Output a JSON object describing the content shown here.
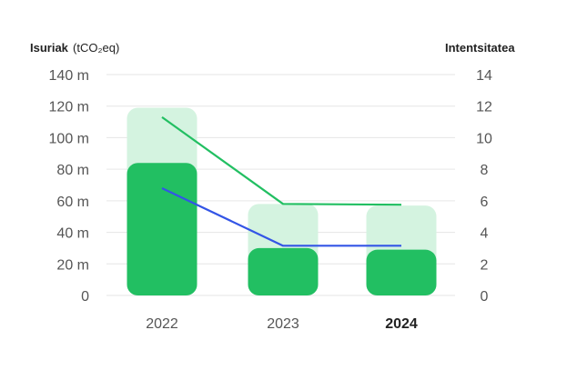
{
  "chart_data": {
    "type": "bar",
    "categories": [
      "2022",
      "2023",
      "2024"
    ],
    "active_category": "2024",
    "left_axis": {
      "title": "Isuriak",
      "unit": "(tCO₂eq)",
      "ylim": [
        0,
        140
      ],
      "ticks": [
        0,
        20,
        40,
        60,
        80,
        100,
        120,
        140
      ],
      "tick_labels": [
        "0",
        "20 m",
        "40 m",
        "60 m",
        "80 m",
        "100 m",
        "120 m",
        "140 m"
      ]
    },
    "right_axis": {
      "title": "Intentsitatea",
      "ylim": [
        0,
        14
      ],
      "ticks": [
        0,
        2,
        4,
        6,
        8,
        10,
        12,
        14
      ],
      "tick_labels": [
        "0",
        "2",
        "4",
        "6",
        "8",
        "10",
        "12",
        "14"
      ]
    },
    "series": [
      {
        "kind": "bar",
        "axis": "left",
        "color": "#d4f3e0",
        "values": [
          119,
          58,
          57
        ]
      },
      {
        "kind": "bar",
        "axis": "left",
        "color": "#22bf62",
        "values": [
          84,
          30,
          29
        ]
      },
      {
        "kind": "line",
        "axis": "right",
        "color": "#22bf62",
        "values": [
          11.3,
          5.8,
          5.75
        ]
      },
      {
        "kind": "line",
        "axis": "right",
        "color": "#3355e6",
        "values": [
          6.8,
          3.15,
          3.15
        ]
      }
    ],
    "grid": true,
    "gridline_color": "#e6e6e6"
  }
}
